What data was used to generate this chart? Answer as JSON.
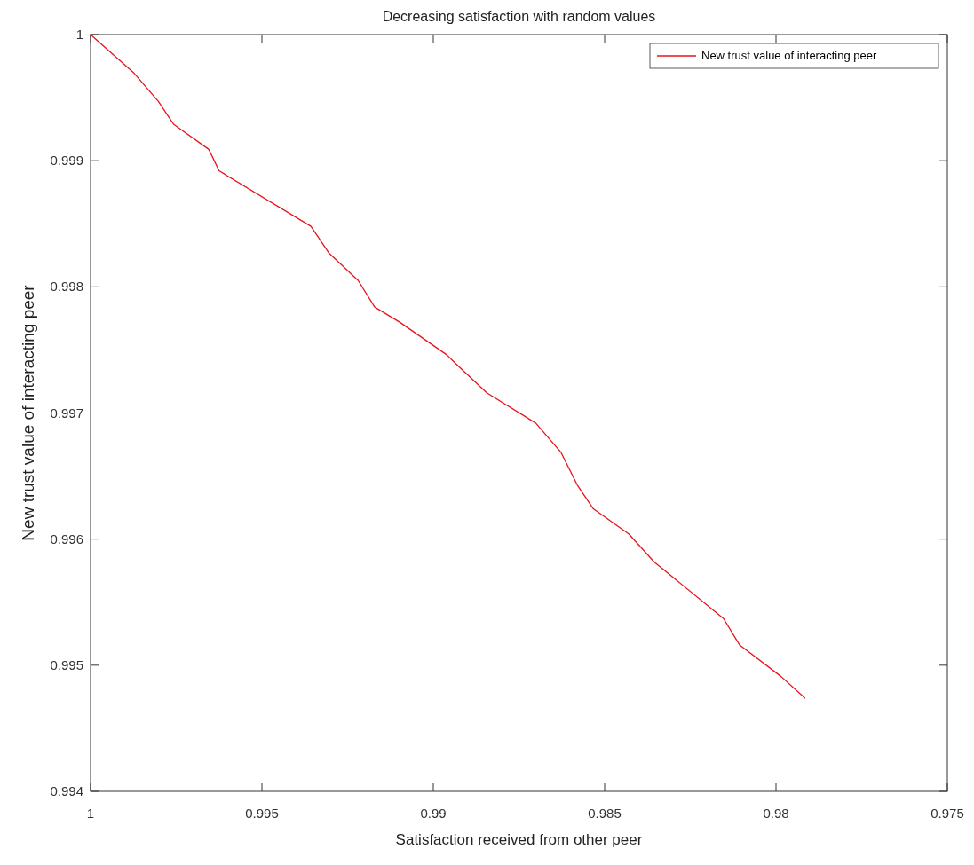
{
  "chart_data": {
    "type": "line",
    "title": "Decreasing satisfaction with random values",
    "xlabel": "Satisfaction received from other peer",
    "ylabel": "New trust value of interacting peer",
    "xlim": [
      1,
      0.975
    ],
    "xticks": [
      1,
      0.995,
      0.99,
      0.985,
      0.98,
      0.975
    ],
    "ylim": [
      0.994,
      1
    ],
    "yticks": [
      0.994,
      0.995,
      0.996,
      0.997,
      0.998,
      0.999,
      1
    ],
    "legend": "top right",
    "grid": false,
    "series": [
      {
        "name": "New trust value of interacting peer",
        "color": "#e8141c",
        "x": [
          1,
          0.99875,
          0.99802,
          0.99758,
          0.99655,
          0.99625,
          0.99357,
          0.99305,
          0.99219,
          0.99171,
          0.99098,
          0.9896,
          0.98934,
          0.98844,
          0.98701,
          0.98628,
          0.9858,
          0.98533,
          0.98429,
          0.98356,
          0.98153,
          0.98106,
          0.97985,
          0.97916
        ],
        "values": [
          1,
          0.9997,
          0.99947,
          0.99929,
          0.99909,
          0.99892,
          0.99848,
          0.99827,
          0.99805,
          0.99784,
          0.99772,
          0.99746,
          0.99739,
          0.99716,
          0.99692,
          0.99669,
          0.99643,
          0.99624,
          0.99604,
          0.99582,
          0.99537,
          0.99516,
          0.99491,
          0.99474
        ]
      }
    ]
  }
}
